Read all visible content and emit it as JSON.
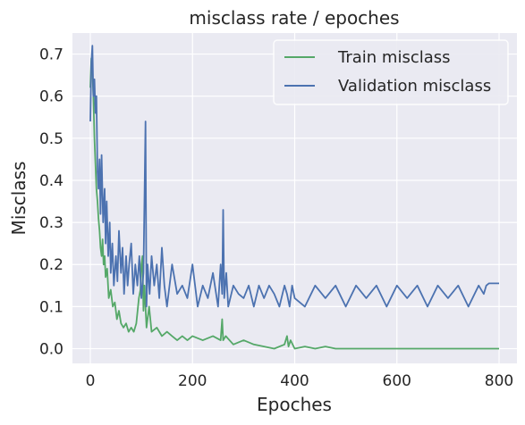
{
  "chart_data": {
    "type": "line",
    "title": "misclass rate / epoches",
    "xlabel": "Epoches",
    "ylabel": "Misclass",
    "xlim": [
      -35,
      835
    ],
    "ylim": [
      -0.035,
      0.75
    ],
    "xticks": [
      0,
      200,
      400,
      600,
      800
    ],
    "yticks": [
      0.0,
      0.1,
      0.2,
      0.3,
      0.4,
      0.5,
      0.6,
      0.7
    ],
    "ytick_labels": [
      "0.0",
      "0.1",
      "0.2",
      "0.3",
      "0.4",
      "0.5",
      "0.6",
      "0.7"
    ],
    "grid": true,
    "legend_position": "top-right",
    "series": [
      {
        "name": "Train misclass",
        "color": "#55a868",
        "x": [
          0,
          2,
          4,
          6,
          8,
          10,
          12,
          14,
          16,
          18,
          20,
          22,
          24,
          26,
          28,
          30,
          33,
          36,
          40,
          44,
          48,
          52,
          56,
          60,
          65,
          70,
          75,
          80,
          85,
          90,
          95,
          98,
          100,
          102,
          104,
          106,
          110,
          115,
          120,
          130,
          140,
          150,
          160,
          170,
          180,
          190,
          200,
          220,
          240,
          255,
          258,
          260,
          265,
          280,
          300,
          320,
          340,
          360,
          380,
          385,
          388,
          392,
          400,
          420,
          440,
          460,
          480,
          500,
          600,
          700,
          800
        ],
        "y": [
          0.62,
          0.69,
          0.66,
          0.6,
          0.5,
          0.44,
          0.38,
          0.35,
          0.31,
          0.28,
          0.24,
          0.22,
          0.26,
          0.2,
          0.22,
          0.17,
          0.19,
          0.12,
          0.14,
          0.1,
          0.11,
          0.07,
          0.09,
          0.06,
          0.05,
          0.06,
          0.04,
          0.05,
          0.04,
          0.06,
          0.12,
          0.14,
          0.2,
          0.22,
          0.09,
          0.15,
          0.05,
          0.1,
          0.04,
          0.05,
          0.03,
          0.04,
          0.03,
          0.02,
          0.03,
          0.02,
          0.03,
          0.02,
          0.03,
          0.02,
          0.07,
          0.02,
          0.03,
          0.01,
          0.02,
          0.01,
          0.005,
          0.0,
          0.01,
          0.03,
          0.005,
          0.02,
          0.0,
          0.005,
          0.0,
          0.005,
          0.0,
          0.0,
          0.0,
          0.0,
          0.0
        ]
      },
      {
        "name": "Validation misclass",
        "color": "#4c72b0",
        "x": [
          0,
          2,
          4,
          6,
          8,
          10,
          12,
          14,
          16,
          18,
          20,
          22,
          25,
          28,
          30,
          32,
          35,
          38,
          40,
          43,
          46,
          50,
          53,
          56,
          60,
          63,
          66,
          70,
          73,
          76,
          80,
          84,
          88,
          92,
          96,
          100,
          104,
          108,
          110,
          112,
          116,
          120,
          125,
          130,
          135,
          140,
          145,
          150,
          160,
          170,
          180,
          190,
          200,
          210,
          220,
          230,
          240,
          250,
          255,
          258,
          260,
          262,
          266,
          270,
          280,
          290,
          300,
          310,
          320,
          330,
          340,
          350,
          360,
          370,
          380,
          385,
          390,
          395,
          400,
          420,
          440,
          460,
          480,
          500,
          520,
          540,
          560,
          580,
          600,
          620,
          640,
          660,
          680,
          700,
          720,
          740,
          760,
          770,
          775,
          780,
          790,
          800
        ],
        "y": [
          0.54,
          0.68,
          0.72,
          0.6,
          0.64,
          0.56,
          0.6,
          0.42,
          0.38,
          0.45,
          0.32,
          0.46,
          0.3,
          0.38,
          0.25,
          0.35,
          0.22,
          0.3,
          0.18,
          0.25,
          0.15,
          0.22,
          0.16,
          0.28,
          0.18,
          0.24,
          0.13,
          0.22,
          0.15,
          0.2,
          0.25,
          0.13,
          0.2,
          0.15,
          0.22,
          0.12,
          0.18,
          0.54,
          0.1,
          0.2,
          0.13,
          0.22,
          0.15,
          0.2,
          0.12,
          0.24,
          0.15,
          0.1,
          0.2,
          0.13,
          0.15,
          0.12,
          0.2,
          0.1,
          0.15,
          0.12,
          0.18,
          0.1,
          0.2,
          0.13,
          0.33,
          0.12,
          0.18,
          0.1,
          0.15,
          0.13,
          0.12,
          0.15,
          0.1,
          0.15,
          0.12,
          0.15,
          0.13,
          0.1,
          0.15,
          0.13,
          0.1,
          0.15,
          0.12,
          0.1,
          0.15,
          0.12,
          0.15,
          0.1,
          0.15,
          0.12,
          0.15,
          0.1,
          0.15,
          0.12,
          0.15,
          0.1,
          0.15,
          0.12,
          0.15,
          0.1,
          0.15,
          0.13,
          0.15,
          0.155,
          0.155,
          0.155
        ]
      }
    ]
  }
}
